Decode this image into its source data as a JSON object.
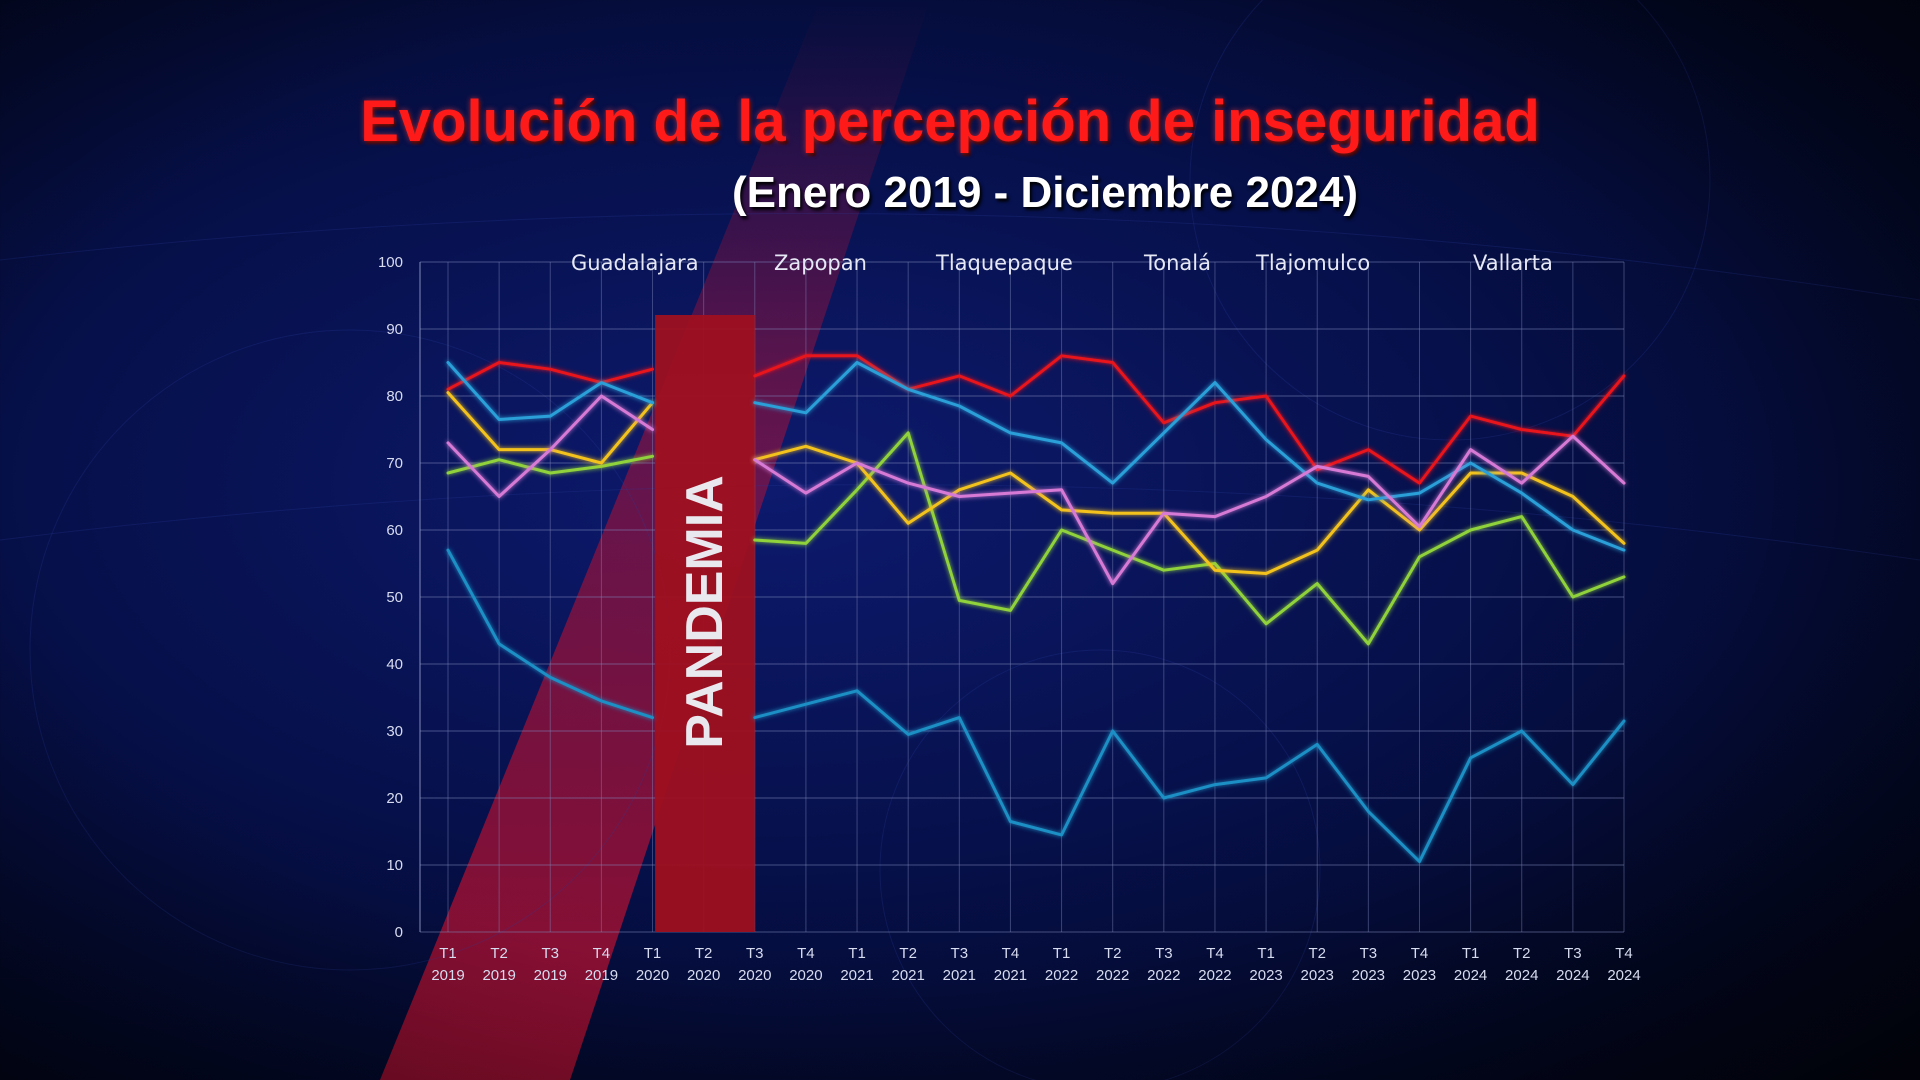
{
  "chart_data": {
    "type": "line",
    "title": "Evolución de la percepción de inseguridad",
    "subtitle": "(Enero 2019 - Diciembre 2024)",
    "xlabel": "",
    "ylabel": "",
    "ylim": [
      0,
      100
    ],
    "yticks": [
      0,
      10,
      20,
      30,
      40,
      50,
      60,
      70,
      80,
      90,
      100
    ],
    "grid": true,
    "legend_position": "top",
    "categories": [
      [
        "T1",
        "2019"
      ],
      [
        "T2",
        "2019"
      ],
      [
        "T3",
        "2019"
      ],
      [
        "T4",
        "2019"
      ],
      [
        "T1",
        "2020"
      ],
      [
        "T2",
        "2020"
      ],
      [
        "T3",
        "2020"
      ],
      [
        "T4",
        "2020"
      ],
      [
        "T1",
        "2021"
      ],
      [
        "T2",
        "2021"
      ],
      [
        "T3",
        "2021"
      ],
      [
        "T4",
        "2021"
      ],
      [
        "T1",
        "2022"
      ],
      [
        "T2",
        "2022"
      ],
      [
        "T3",
        "2022"
      ],
      [
        "T4",
        "2022"
      ],
      [
        "T1",
        "2023"
      ],
      [
        "T2",
        "2023"
      ],
      [
        "T3",
        "2023"
      ],
      [
        "T4",
        "2023"
      ],
      [
        "T1",
        "2024"
      ],
      [
        "T2",
        "2024"
      ],
      [
        "T3",
        "2024"
      ],
      [
        "T4",
        "2024"
      ]
    ],
    "annotation": {
      "label": "PANDEMIA",
      "from_index": 4.05,
      "to_index": 6.0
    },
    "series": [
      {
        "name": "Guadalajara",
        "color": "#e8121a",
        "values": [
          81,
          85,
          84,
          82,
          84,
          null,
          83,
          86,
          86,
          81,
          83,
          80,
          86,
          85,
          76,
          79,
          80,
          69,
          72,
          67,
          77,
          75,
          74,
          83
        ]
      },
      {
        "name": "Zapopan",
        "color": "#8fd23a",
        "values": [
          68.5,
          70.5,
          68.5,
          69.5,
          71,
          null,
          58.5,
          58,
          66,
          74.5,
          49.5,
          48,
          60,
          57,
          54,
          55,
          46,
          52,
          43,
          56,
          60,
          62,
          50,
          53
        ]
      },
      {
        "name": "Tlaquepaque",
        "color": "#f3c21a",
        "values": [
          80.5,
          72,
          72,
          70,
          79,
          null,
          70.5,
          72.5,
          70,
          61,
          66,
          68.5,
          63,
          62.5,
          62.5,
          54,
          53.5,
          57,
          66,
          60,
          68.5,
          68.5,
          65,
          58
        ]
      },
      {
        "name": "Tonalá",
        "color": "#2a9fd8",
        "values": [
          85,
          76.5,
          77,
          82,
          79,
          null,
          79,
          77.5,
          85,
          81,
          78.5,
          74.5,
          73,
          67,
          74.5,
          82,
          73.5,
          67,
          64.5,
          65.5,
          70,
          65.5,
          60,
          57
        ]
      },
      {
        "name": "Tlajomulco",
        "color": "#d77ad6",
        "values": [
          73,
          65,
          72,
          80,
          75,
          null,
          70.5,
          65.5,
          70,
          67,
          65,
          65.5,
          66,
          52,
          62.5,
          62,
          65,
          69.5,
          68,
          60.5,
          72,
          67,
          74,
          67
        ]
      },
      {
        "name": "Vallarta",
        "color": "#1f8fc4",
        "values": [
          57,
          43,
          38,
          34.5,
          32,
          null,
          32,
          34,
          36,
          29.5,
          32,
          16.5,
          14.5,
          30,
          20,
          22,
          23,
          28,
          18,
          10.5,
          26,
          30,
          22,
          31.5
        ]
      }
    ]
  }
}
